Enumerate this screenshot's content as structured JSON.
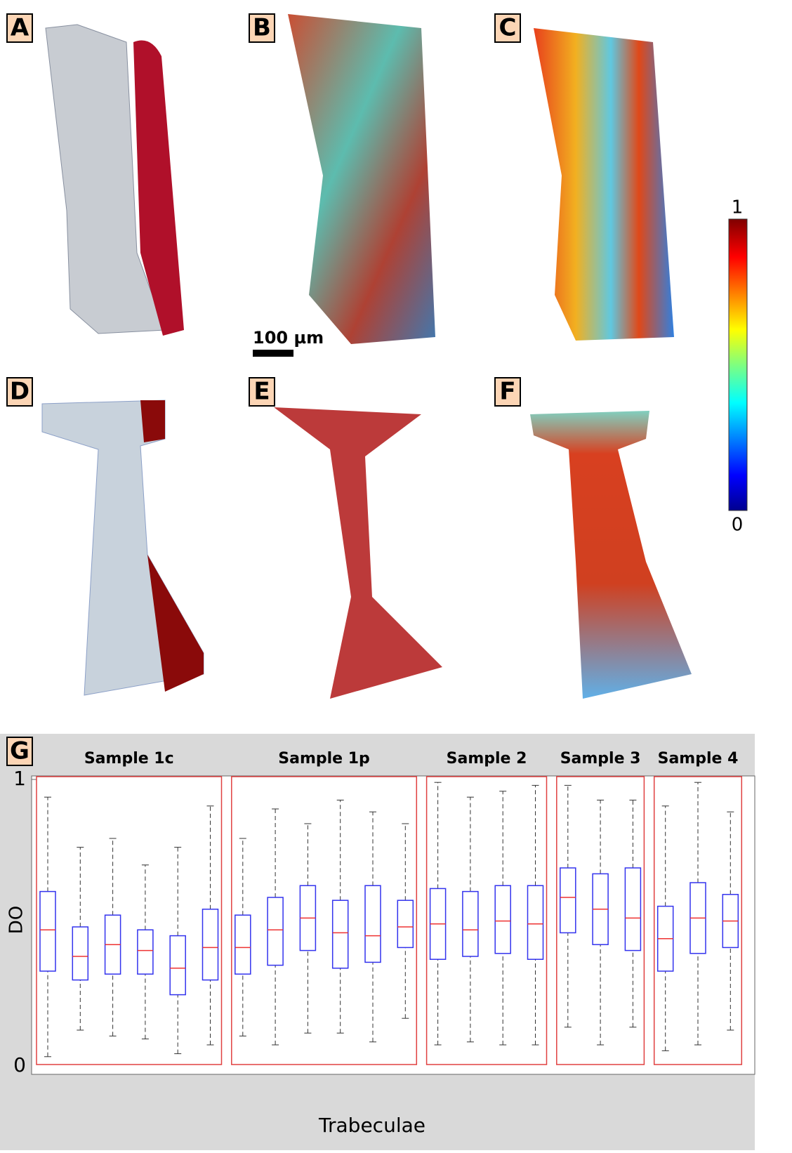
{
  "panels": [
    "A",
    "B",
    "C",
    "D",
    "E",
    "F",
    "G"
  ],
  "scale_bar": "100 µm",
  "colorbar": {
    "ticks": [
      "1",
      "0"
    ]
  },
  "chart_data": {
    "type": "box",
    "xlabel": "Trabeculae",
    "ylabel": "DO",
    "ylim": [
      0,
      1
    ],
    "yticks": [
      0,
      1
    ],
    "groups": [
      {
        "name": "Sample 1c",
        "boxes": [
          [
            0.06,
            0.35,
            0.49,
            0.62,
            0.94
          ],
          [
            0.15,
            0.32,
            0.4,
            0.5,
            0.77
          ],
          [
            0.13,
            0.34,
            0.44,
            0.54,
            0.8
          ],
          [
            0.12,
            0.34,
            0.42,
            0.49,
            0.71
          ],
          [
            0.07,
            0.27,
            0.36,
            0.47,
            0.77
          ],
          [
            0.1,
            0.32,
            0.43,
            0.56,
            0.91
          ]
        ]
      },
      {
        "name": "Sample 1p",
        "boxes": [
          [
            0.13,
            0.34,
            0.43,
            0.54,
            0.8
          ],
          [
            0.1,
            0.37,
            0.49,
            0.6,
            0.9
          ],
          [
            0.14,
            0.42,
            0.53,
            0.64,
            0.85
          ],
          [
            0.14,
            0.36,
            0.48,
            0.59,
            0.93
          ],
          [
            0.11,
            0.38,
            0.47,
            0.64,
            0.89
          ],
          [
            0.19,
            0.43,
            0.5,
            0.59,
            0.85
          ]
        ]
      },
      {
        "name": "Sample 2",
        "boxes": [
          [
            0.1,
            0.39,
            0.51,
            0.63,
            0.99
          ],
          [
            0.11,
            0.4,
            0.49,
            0.62,
            0.94
          ],
          [
            0.1,
            0.41,
            0.52,
            0.64,
            0.96
          ],
          [
            0.1,
            0.39,
            0.51,
            0.64,
            0.98
          ]
        ]
      },
      {
        "name": "Sample 3",
        "boxes": [
          [
            0.16,
            0.48,
            0.6,
            0.7,
            0.98
          ],
          [
            0.1,
            0.44,
            0.56,
            0.68,
            0.93
          ],
          [
            0.16,
            0.42,
            0.53,
            0.7,
            0.93
          ]
        ]
      },
      {
        "name": "Sample 4",
        "boxes": [
          [
            0.08,
            0.35,
            0.46,
            0.57,
            0.91
          ],
          [
            0.1,
            0.41,
            0.53,
            0.65,
            0.99
          ],
          [
            0.15,
            0.43,
            0.52,
            0.61,
            0.89
          ]
        ]
      }
    ]
  }
}
